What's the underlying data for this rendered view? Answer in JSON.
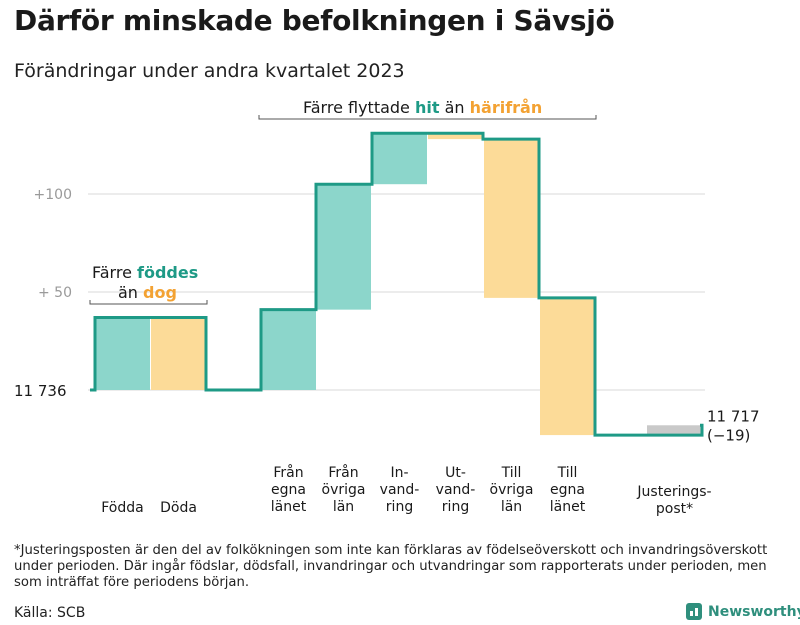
{
  "header": {
    "title": "Därför minskade befolkningen i Sävsjö",
    "subtitle": "Förändringar under andra kvartalet 2023"
  },
  "colors": {
    "teal_fill": "#8cd6cb",
    "orange_fill": "#fcdb98",
    "line": "#1e9a86",
    "teal_text": "#1e9a86",
    "orange_text": "#f3a233",
    "grey_fill": "#c9c9c9",
    "grid": "#d9d9d9"
  },
  "chart_data": {
    "type": "waterfall",
    "baseline": 11736,
    "baseline_label": "11  736",
    "end_value_label": "11 717",
    "end_change_label": "(−19)",
    "y_range": [
      -25,
      130
    ],
    "y_ticks": [
      {
        "value": 100,
        "label": "+100"
      },
      {
        "value": 50,
        "label": "+  50"
      }
    ],
    "steps": [
      {
        "label": "Födda",
        "change": 37,
        "color": "teal"
      },
      {
        "label": "Döda",
        "change": -37,
        "color": "orange"
      },
      {
        "label": "Från egna länet",
        "change": 41,
        "color": "teal"
      },
      {
        "label": "Från övriga län",
        "change": 64,
        "color": "teal"
      },
      {
        "label": "In-vandring",
        "change": 26,
        "color": "teal"
      },
      {
        "label": "Ut-vandring",
        "change": -3,
        "color": "orange"
      },
      {
        "label": "Till övriga län",
        "change": -81,
        "color": "orange"
      },
      {
        "label": "Till egna länet",
        "change": -70,
        "color": "orange"
      },
      {
        "label": "Justerings-post*",
        "change": 5,
        "color": "grey"
      }
    ],
    "annotations": {
      "birth_line1": "Färre",
      "birth_word1": "föddes",
      "birth_line2": "än",
      "birth_word2": "dog",
      "migration_prefix": "Färre flyttade",
      "migration_word1": "hit",
      "migration_mid": "än",
      "migration_word2": "härifrån"
    }
  },
  "footnote": "*Justeringsposten är den del av folkökningen som inte kan förklaras av födelseöverskott och invandringsöverskott under perioden. Där ingår födslar, dödsfall, invandringar och utvandringar som rapporterats under perioden, men som inträffat före periodens början.",
  "source": "Källa: SCB",
  "logo": {
    "text": "Newsworthy",
    "icon": "bar-chart-icon"
  }
}
